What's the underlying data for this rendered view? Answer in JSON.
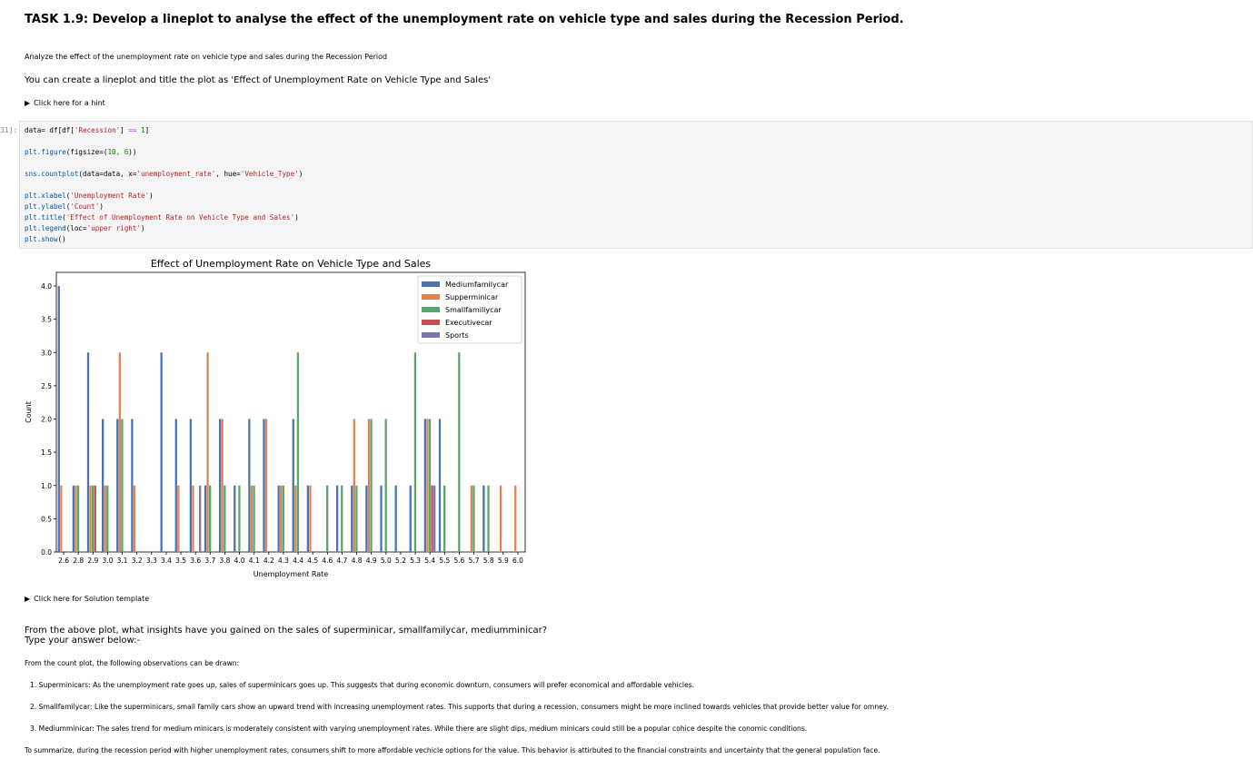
{
  "task_title": "TASK 1.9: Develop a lineplot to analyse the effect of the unemployment rate on vehicle type and sales during the Recession Period.",
  "description": "Analyze the effect of the unemployment rate on vehicle type and sales during the Recession Period",
  "instruction": "You can create a lineplot and title the plot as 'Effect of Unemployment Rate on Vehicle Type and Sales'",
  "hint_label": "Click here for a hint",
  "cell_prompt": "31]:",
  "code": {
    "l1a": "data= df[df[",
    "l1s": "'Recession'",
    "l1b": "] ",
    "l1o": "==",
    "l1n": " 1",
    "l1c": "]",
    "l2a": "plt.figure",
    "l2b": "(figsize=(",
    "l2n": "10, 6",
    "l2c": "))",
    "l3a": "sns.countplot",
    "l3b": "(data=data, x=",
    "l3s": "'unemployment_rate'",
    "l3c": ", hue=",
    "l3s2": "'Vehicle_Type'",
    "l3d": ")",
    "l4a": "plt.xlabel",
    "l4b": "(",
    "l4s": "'Unemployment Rate'",
    "l4c": ")",
    "l5a": "plt.ylabel",
    "l5b": "(",
    "l5s": "'Count'",
    "l5c": ")",
    "l6a": "plt.title",
    "l6b": "(",
    "l6s": "'Effect of Unemployment Rate on Vehicle Type and Sales'",
    "l6c": ")",
    "l7a": "plt.legend",
    "l7b": "(loc=",
    "l7s": "'upper right'",
    "l7c": ")",
    "l8a": "plt.show",
    "l8b": "()"
  },
  "solution_label": "Click here for Solution template",
  "question_line1": "From the above plot, what insights have you gained on the sales of superminicar, smallfamilycar, mediumminicar?",
  "question_line2": "Type your answer below:-",
  "obs_intro": "From the count plot, the following observations can be drawn:",
  "obs1": "1. Superminicars: As the unemployment rate goes up, sales of superminicars goes up. This suggests that during economic downturn, consumers will prefer economical and affordable vehicles.",
  "obs2": "2. Smallfamilycar: Like the superminicars, small family cars show an upward trend with increasing unemployment rates. This supports that during a recession, consumers might be more inclined towards vehicles that provide better value for omney.",
  "obs3": "3. Mediumminicar: The sales trend for medium minicars is moderately consistent with varying unemployment rates. While there are slight dips, medium minicars could still be a popular cohice despite the conomic conditions.",
  "summary": "To summarize, during the recession period with higher unemployment rates, consumers shift to more affordable vechicle options for the value. This behavior is attirbuted to the financial constraints and uncertainty that the general population face.",
  "chart_data": {
    "type": "bar",
    "title": "Effect of Unemployment Rate on Vehicle Type and Sales",
    "xlabel": "Unemployment Rate",
    "ylabel": "Count",
    "ylim": [
      0,
      4.1
    ],
    "yticks": [
      "0.0",
      "0.5",
      "1.0",
      "1.5",
      "2.0",
      "2.5",
      "3.0",
      "3.5",
      "4.0"
    ],
    "legend_position": "upper right",
    "categories": [
      "2.6",
      "2.8",
      "2.9",
      "3.0",
      "3.1",
      "3.2",
      "3.3",
      "3.4",
      "3.5",
      "3.6",
      "3.7",
      "3.8",
      "4.0",
      "4.1",
      "4.2",
      "4.3",
      "4.4",
      "4.5",
      "4.6",
      "4.7",
      "4.8",
      "4.9",
      "5.0",
      "5.2",
      "5.3",
      "5.4",
      "5.5",
      "5.6",
      "5.7",
      "5.8",
      "5.9",
      "6.0"
    ],
    "series": [
      {
        "name": "Mediumfamilycar",
        "color": "#4c72b0",
        "values": [
          4,
          1,
          3,
          2,
          2,
          2,
          0,
          3,
          2,
          2,
          1,
          2,
          1,
          2,
          2,
          1,
          2,
          1,
          0,
          1,
          1,
          1,
          1,
          1,
          1,
          2,
          2,
          0,
          0,
          1,
          0,
          0
        ]
      },
      {
        "name": "Supperminicar",
        "color": "#dd8452",
        "values": [
          1,
          1,
          1,
          1,
          3,
          1,
          0,
          0,
          1,
          1,
          3,
          2,
          0,
          1,
          2,
          1,
          1,
          1,
          0,
          0,
          2,
          2,
          0,
          0,
          0,
          2,
          0,
          0,
          1,
          0,
          1,
          1
        ]
      },
      {
        "name": "Smallfamiliycar",
        "color": "#55a868",
        "values": [
          0,
          1,
          1,
          1,
          2,
          0,
          0,
          0,
          0,
          0,
          1,
          1,
          1,
          1,
          0,
          1,
          3,
          0,
          1,
          1,
          1,
          2,
          2,
          0,
          3,
          2,
          1,
          3,
          1,
          1,
          0,
          0
        ]
      },
      {
        "name": "Executivecar",
        "color": "#c44e52",
        "values": [
          0,
          0,
          1,
          0,
          0,
          0,
          0,
          0,
          0,
          0,
          0,
          0,
          0,
          0,
          0,
          0,
          0,
          0,
          0,
          0,
          0,
          0,
          0,
          0,
          0,
          1,
          0,
          0,
          0,
          0,
          0,
          0
        ]
      },
      {
        "name": "Sports",
        "color": "#8172b3",
        "values": [
          0,
          0,
          0,
          0,
          0,
          0,
          0,
          0,
          0,
          1,
          0,
          0,
          0,
          0,
          0,
          0,
          0,
          0,
          0,
          0,
          0,
          0,
          0,
          0,
          0,
          1,
          0,
          0,
          0,
          0,
          0,
          0
        ]
      }
    ]
  }
}
